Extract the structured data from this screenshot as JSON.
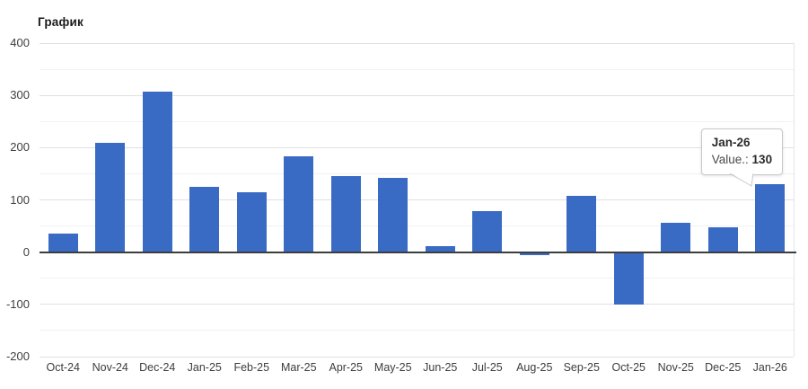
{
  "chart_data": {
    "type": "bar",
    "title": "График",
    "categories": [
      "Oct-24",
      "Nov-24",
      "Dec-24",
      "Jan-25",
      "Feb-25",
      "Mar-25",
      "Apr-25",
      "May-25",
      "Jun-25",
      "Jul-25",
      "Aug-25",
      "Sep-25",
      "Oct-25",
      "Nov-25",
      "Dec-25",
      "Jan-26"
    ],
    "values": [
      35,
      210,
      307,
      125,
      115,
      183,
      146,
      142,
      12,
      78,
      -5,
      107,
      -100,
      56,
      47,
      130
    ],
    "xlabel": "",
    "ylabel": "",
    "ylim": [
      -200,
      400
    ],
    "y_major_step": 100,
    "y_minor_step": 50,
    "y_tick_labels": [
      "400",
      "300",
      "200",
      "100",
      "0",
      "-100",
      "-200"
    ],
    "grid": true,
    "legend_position": "none",
    "bar_color": "#3a6bc4"
  },
  "tooltip": {
    "title": "Jan-26",
    "series_label": "Value.:",
    "value": "130",
    "target_category_index": 15
  },
  "colors": {
    "bar": "#3a6bc4",
    "grid_major": "#e0e0e0",
    "grid_minor": "#f1f1f1",
    "zero_line": "#3d3d3d",
    "axis_text": "#404040",
    "title_text": "#1a1a1a",
    "tooltip_border": "#c9c9c9",
    "background": "#ffffff"
  }
}
